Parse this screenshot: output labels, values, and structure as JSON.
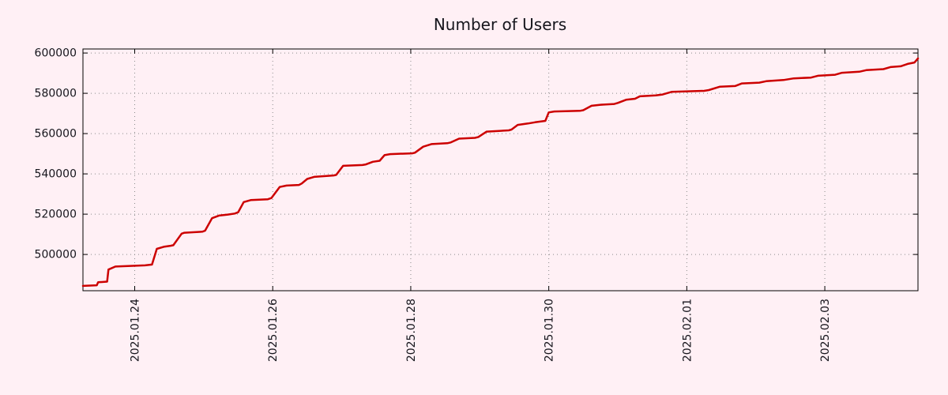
{
  "window": {
    "background": "#fff0f5",
    "text_color": "#16161d"
  },
  "chart_data": {
    "type": "line",
    "title": "Number of Users",
    "legend": "none",
    "grid": {
      "style": "dotted",
      "color": "#8a8a8a"
    },
    "x_axis": {
      "x_encoding": "days, 1.0 = 2025.01.24",
      "range": [
        0.25,
        12.35
      ],
      "tick_positions": [
        1,
        3,
        5,
        7,
        9,
        11
      ],
      "tick_labels": [
        "2025.01.24",
        "2025.01.26",
        "2025.01.28",
        "2025.01.30",
        "2025.02.01",
        "2025.02.03"
      ],
      "label_rotation_deg": 90
    },
    "y_axis": {
      "range": [
        482000,
        602000
      ],
      "tick_positions": [
        500000,
        520000,
        540000,
        560000,
        580000,
        600000
      ],
      "tick_labels": [
        "500000",
        "520000",
        "540000",
        "560000",
        "580000",
        "600000"
      ]
    },
    "series": [
      {
        "name": "Number of Users",
        "color": "#cc0000",
        "line_width": 2.5,
        "x": [
          0.25,
          0.45,
          0.47,
          0.6,
          0.62,
          0.72,
          1.15,
          1.25,
          1.32,
          1.42,
          1.52,
          1.56,
          1.68,
          1.72,
          1.98,
          2.02,
          2.12,
          2.22,
          2.35,
          2.45,
          2.5,
          2.58,
          2.68,
          2.93,
          2.98,
          3.1,
          3.2,
          3.38,
          3.42,
          3.5,
          3.6,
          3.88,
          3.92,
          4.02,
          4.3,
          4.35,
          4.45,
          4.55,
          4.62,
          4.7,
          5.02,
          5.06,
          5.18,
          5.3,
          5.53,
          5.58,
          5.7,
          5.93,
          5.98,
          6.1,
          6.42,
          6.46,
          6.55,
          6.7,
          6.8,
          6.95,
          7.0,
          7.08,
          7.45,
          7.5,
          7.62,
          7.75,
          7.95,
          8.0,
          8.12,
          8.25,
          8.32,
          8.55,
          8.65,
          8.78,
          9.25,
          9.32,
          9.48,
          9.7,
          9.8,
          10.05,
          10.15,
          10.4,
          10.55,
          10.8,
          10.9,
          11.15,
          11.25,
          11.5,
          11.6,
          11.85,
          11.95,
          12.1,
          12.2,
          12.3,
          12.35
        ],
        "values": [
          484400,
          484700,
          486200,
          486500,
          492500,
          494000,
          494600,
          495000,
          502800,
          503800,
          504300,
          504600,
          510300,
          510800,
          511300,
          511800,
          518000,
          519300,
          519800,
          520300,
          521000,
          526000,
          527000,
          527400,
          528000,
          533500,
          534200,
          534500,
          535200,
          537500,
          538500,
          539200,
          539500,
          544000,
          544400,
          544700,
          546000,
          546500,
          549300,
          549800,
          550200,
          550500,
          553500,
          554800,
          555200,
          555600,
          557500,
          557900,
          558300,
          561000,
          561600,
          562000,
          564300,
          565000,
          565600,
          566300,
          570500,
          571000,
          571300,
          571600,
          573800,
          574300,
          574700,
          575200,
          576800,
          577300,
          578500,
          579000,
          579400,
          580700,
          581200,
          581600,
          583300,
          583600,
          584900,
          585300,
          586000,
          586600,
          587400,
          587800,
          588700,
          589200,
          590200,
          590700,
          591500,
          592000,
          593000,
          593400,
          594600,
          595300,
          597300
        ]
      }
    ]
  }
}
